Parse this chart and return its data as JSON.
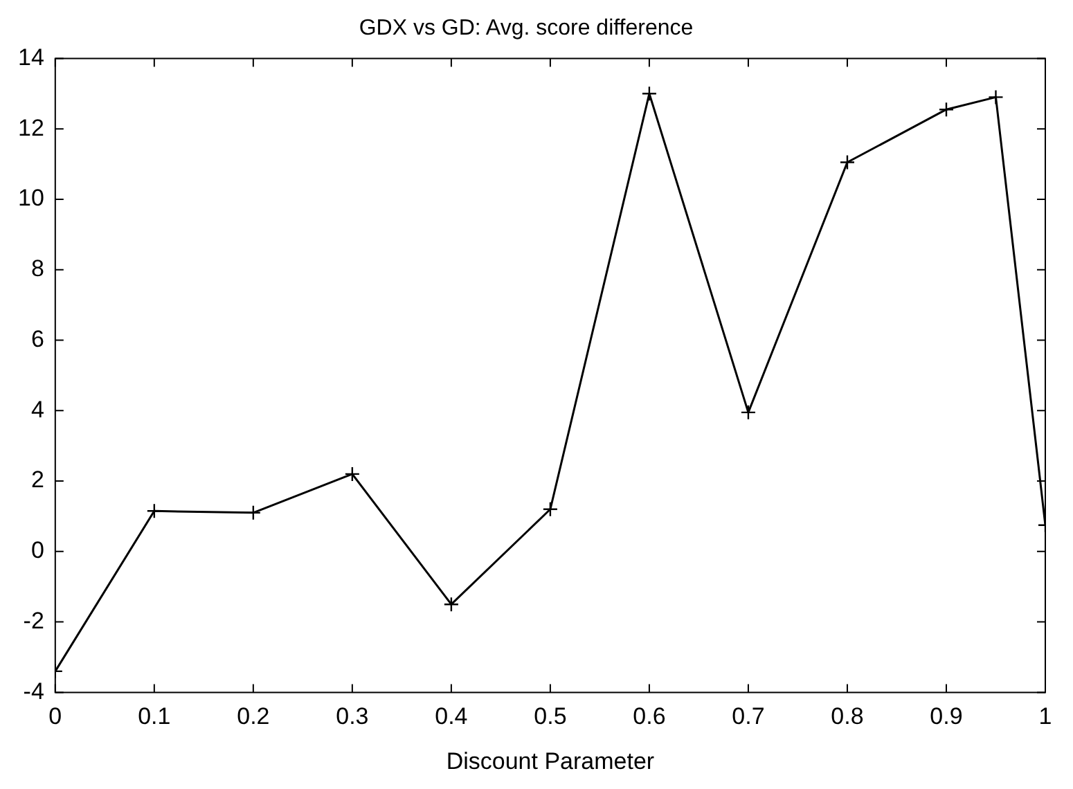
{
  "chart_data": {
    "type": "line",
    "title": "GDX vs GD: Avg. score difference",
    "xlabel": "Discount Parameter",
    "x": [
      0,
      0.1,
      0.2,
      0.3,
      0.4,
      0.5,
      0.6,
      0.7,
      0.8,
      0.9,
      0.95,
      1
    ],
    "series": [
      {
        "color": "#000000",
        "values": [
          -3.4,
          1.15,
          1.1,
          2.2,
          -1.5,
          1.2,
          13.0,
          3.95,
          11.05,
          12.55,
          12.9,
          0.75
        ]
      }
    ],
    "xlim": [
      0,
      1
    ],
    "xticks": [
      0,
      0.1,
      0.2,
      0.3,
      0.4,
      0.5,
      0.6,
      0.7,
      0.8,
      0.9,
      1
    ],
    "ylim": [
      -4,
      14
    ],
    "yticks": [
      -4,
      -2,
      0,
      2,
      4,
      6,
      8,
      10,
      12,
      14
    ],
    "grid": false,
    "legend": false,
    "marker": "cross",
    "line_style": "solid"
  }
}
